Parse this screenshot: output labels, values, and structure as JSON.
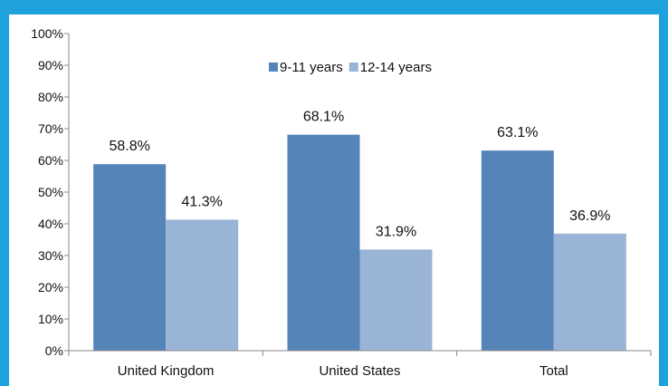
{
  "chart_data": {
    "type": "bar",
    "categories": [
      "United Kingdom",
      "United States",
      "Total"
    ],
    "series": [
      {
        "name": "9-11 years",
        "values": [
          58.8,
          68.1,
          63.1
        ],
        "color": "#5585b8",
        "labels": [
          "58.8%",
          "68.1%",
          "63.1%"
        ]
      },
      {
        "name": "12-14 years",
        "values": [
          41.3,
          31.9,
          36.9
        ],
        "color": "#99b4d7",
        "labels": [
          "41.3%",
          "31.9%",
          "36.9%"
        ]
      }
    ],
    "ylim": [
      0,
      100
    ],
    "yticks": [
      "0%",
      "10%",
      "20%",
      "30%",
      "40%",
      "50%",
      "60%",
      "70%",
      "80%",
      "90%",
      "100%"
    ],
    "grid": false,
    "legend": "top-center",
    "title": "",
    "xlabel": "",
    "ylabel": ""
  },
  "frame_color": "#1ea1dc"
}
